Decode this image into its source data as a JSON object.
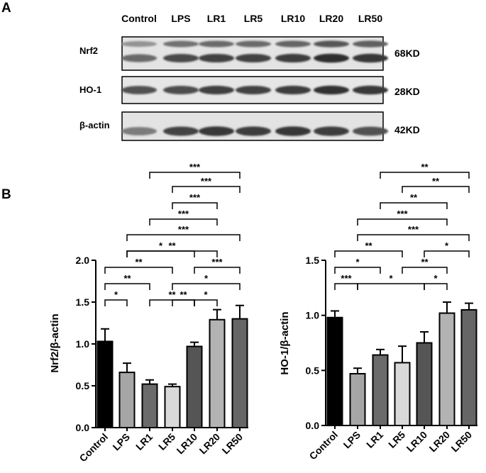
{
  "panel_a": {
    "label": "A",
    "lanes": [
      "Control",
      "LPS",
      "LR1",
      "LR5",
      "LR10",
      "LR20",
      "LR50"
    ],
    "rows": [
      {
        "name": "Nrf2",
        "size": "68KD",
        "intensity": [
          0.55,
          0.75,
          0.78,
          0.78,
          0.82,
          0.9,
          0.85
        ]
      },
      {
        "name": "HO-1",
        "size": "28KD",
        "intensity": [
          0.7,
          0.72,
          0.8,
          0.78,
          0.82,
          0.88,
          0.85
        ]
      },
      {
        "name": "β-actin",
        "size": "42KD",
        "intensity": [
          0.45,
          0.78,
          0.85,
          0.82,
          0.85,
          0.82,
          0.7
        ]
      }
    ]
  },
  "panel_b_label": "B",
  "chart_data": [
    {
      "type": "bar",
      "categories": [
        "Control",
        "LPS",
        "LR1",
        "LR5",
        "LR10",
        "LR20",
        "LR50"
      ],
      "values": [
        1.03,
        0.66,
        0.52,
        0.49,
        0.97,
        1.29,
        1.3
      ],
      "errors": [
        0.15,
        0.11,
        0.05,
        0.03,
        0.05,
        0.12,
        0.16
      ],
      "colors": [
        "#000000",
        "#a6a6a6",
        "#6b6b6b",
        "#d9d9d9",
        "#555555",
        "#b3b3b3",
        "#666666"
      ],
      "ylabel": "Nrf2/β-actin",
      "ylim": [
        0,
        2.0
      ],
      "yticks": [
        "0.0",
        "0.5",
        "1.0",
        "1.5",
        "2.0"
      ],
      "significance": [
        {
          "from": "LR1",
          "to": "LR50",
          "label": "***"
        },
        {
          "from": "LR5",
          "to": "LR50",
          "label": "***"
        },
        {
          "from": "LR5",
          "to": "LR20",
          "label": "***"
        },
        {
          "from": "LR1",
          "to": "LR20",
          "label": "***"
        },
        {
          "from": "LPS",
          "to": "LR50",
          "label": "***"
        },
        {
          "from": "LPS",
          "to": "LR10",
          "label": "*"
        },
        {
          "from": "LPS",
          "to": "LR20",
          "label": "**"
        },
        {
          "from": "LR10",
          "to": "LR50",
          "label": "***"
        },
        {
          "from": "Control",
          "to": "LR5",
          "label": "**"
        },
        {
          "from": "LR5",
          "to": "LR50",
          "label": "*"
        },
        {
          "from": "Control",
          "to": "LR1",
          "label": "**"
        },
        {
          "from": "LR1",
          "to": "LR10",
          "label": "**"
        },
        {
          "from": "Control",
          "to": "LPS",
          "label": "*"
        },
        {
          "from": "LR5",
          "to": "LR10",
          "label": "**"
        },
        {
          "from": "LR10",
          "to": "LR20",
          "label": "*"
        }
      ]
    },
    {
      "type": "bar",
      "categories": [
        "Control",
        "LPS",
        "LR1",
        "LR5",
        "LR10",
        "LR20",
        "LR50"
      ],
      "values": [
        0.98,
        0.47,
        0.64,
        0.57,
        0.75,
        1.02,
        1.05
      ],
      "errors": [
        0.06,
        0.05,
        0.05,
        0.15,
        0.1,
        0.1,
        0.06
      ],
      "colors": [
        "#000000",
        "#a6a6a6",
        "#6b6b6b",
        "#d9d9d9",
        "#555555",
        "#b3b3b3",
        "#666666"
      ],
      "ylabel": "HO-1/β-actin",
      "ylim": [
        0,
        1.5
      ],
      "yticks": [
        "0.0",
        "0.5",
        "1.0",
        "1.5"
      ],
      "significance": [
        {
          "from": "LR1",
          "to": "LR50",
          "label": "**"
        },
        {
          "from": "LR5",
          "to": "LR50",
          "label": "**"
        },
        {
          "from": "LR1",
          "to": "LR20",
          "label": "**"
        },
        {
          "from": "LPS",
          "to": "LR20",
          "label": "***"
        },
        {
          "from": "LPS",
          "to": "LR50",
          "label": "***"
        },
        {
          "from": "Control",
          "to": "LR5",
          "label": "**"
        },
        {
          "from": "LR10",
          "to": "LR50",
          "label": "*"
        },
        {
          "from": "Control",
          "to": "LR1",
          "label": "*"
        },
        {
          "from": "LR5",
          "to": "LR20",
          "label": "**"
        },
        {
          "from": "Control",
          "to": "LPS",
          "label": "***"
        },
        {
          "from": "LPS",
          "to": "LR10",
          "label": "*"
        },
        {
          "from": "LR10",
          "to": "LR20",
          "label": "*"
        }
      ]
    }
  ]
}
